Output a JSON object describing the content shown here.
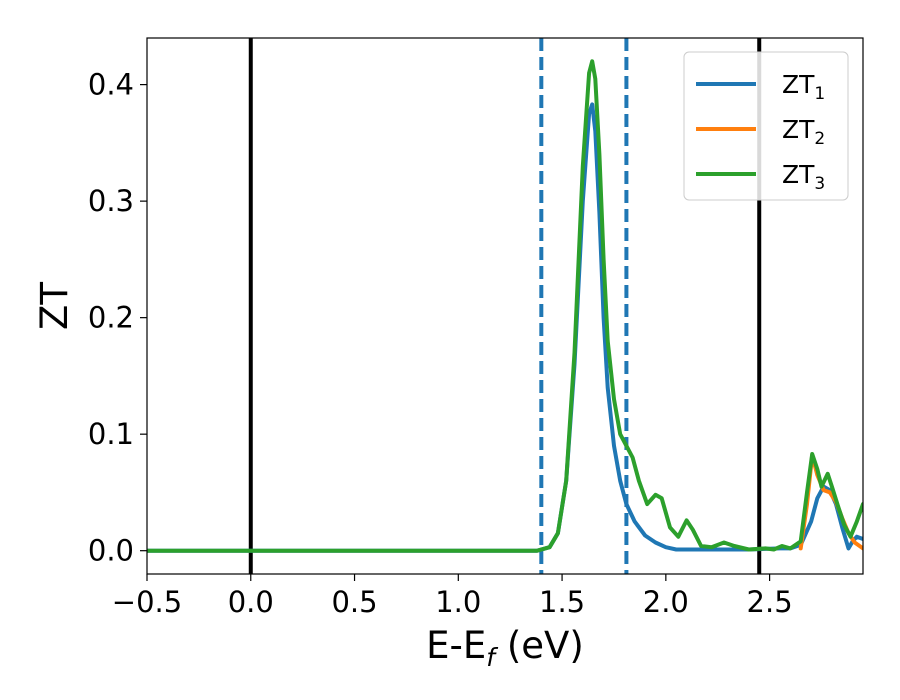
{
  "chart_data": {
    "type": "line",
    "xlabel": {
      "main": "E-E",
      "sub": "f",
      "rest": " (eV)"
    },
    "ylabel": "ZT",
    "xlim": [
      -0.5,
      2.95
    ],
    "ylim": [
      -0.02,
      0.44
    ],
    "xticks": [
      {
        "value": -0.5,
        "label": "−0.5"
      },
      {
        "value": 0.0,
        "label": "0.0"
      },
      {
        "value": 0.5,
        "label": "0.5"
      },
      {
        "value": 1.0,
        "label": "1.0"
      },
      {
        "value": 1.5,
        "label": "1.5"
      },
      {
        "value": 2.0,
        "label": "2.0"
      },
      {
        "value": 2.5,
        "label": "2.5"
      }
    ],
    "yticks": [
      {
        "value": 0.0,
        "label": "0.0"
      },
      {
        "value": 0.1,
        "label": "0.1"
      },
      {
        "value": 0.2,
        "label": "0.2"
      },
      {
        "value": 0.3,
        "label": "0.3"
      },
      {
        "value": 0.4,
        "label": "0.4"
      }
    ],
    "vlines": [
      {
        "x": 0.0,
        "style": "solid",
        "color": "#000000"
      },
      {
        "x": 2.45,
        "style": "solid",
        "color": "#000000"
      },
      {
        "x": 1.4,
        "style": "dashed",
        "color": "#1f77b4"
      },
      {
        "x": 1.81,
        "style": "dashed",
        "color": "#1f77b4"
      }
    ],
    "legend_position": "top-right",
    "series": [
      {
        "name": "ZT",
        "sub": "1",
        "color": "#1f77b4",
        "points": [
          [
            -0.5,
            0
          ],
          [
            1.38,
            0
          ],
          [
            1.44,
            0.003
          ],
          [
            1.48,
            0.015
          ],
          [
            1.52,
            0.06
          ],
          [
            1.56,
            0.16
          ],
          [
            1.6,
            0.3
          ],
          [
            1.63,
            0.375
          ],
          [
            1.645,
            0.383
          ],
          [
            1.66,
            0.36
          ],
          [
            1.68,
            0.29
          ],
          [
            1.7,
            0.2
          ],
          [
            1.72,
            0.14
          ],
          [
            1.75,
            0.09
          ],
          [
            1.78,
            0.06
          ],
          [
            1.81,
            0.04
          ],
          [
            1.85,
            0.025
          ],
          [
            1.9,
            0.013
          ],
          [
            1.95,
            0.007
          ],
          [
            2.0,
            0.003
          ],
          [
            2.05,
            0.001
          ],
          [
            2.2,
            0.001
          ],
          [
            2.4,
            0.001
          ],
          [
            2.55,
            0.002
          ],
          [
            2.6,
            0.002
          ],
          [
            2.65,
            0.005
          ],
          [
            2.7,
            0.025
          ],
          [
            2.73,
            0.045
          ],
          [
            2.76,
            0.055
          ],
          [
            2.79,
            0.052
          ],
          [
            2.82,
            0.04
          ],
          [
            2.85,
            0.02
          ],
          [
            2.88,
            0.002
          ],
          [
            2.9,
            0.008
          ],
          [
            2.92,
            0.012
          ],
          [
            2.95,
            0.01
          ]
        ]
      },
      {
        "name": "ZT",
        "sub": "2",
        "color": "#ff7f0e",
        "points": [
          [
            2.65,
            0.002
          ],
          [
            2.68,
            0.04
          ],
          [
            2.705,
            0.082
          ],
          [
            2.73,
            0.065
          ],
          [
            2.76,
            0.052
          ],
          [
            2.79,
            0.05
          ],
          [
            2.82,
            0.042
          ],
          [
            2.85,
            0.028
          ],
          [
            2.88,
            0.015
          ],
          [
            2.91,
            0.007
          ],
          [
            2.95,
            0.002
          ]
        ]
      },
      {
        "name": "ZT",
        "sub": "3",
        "color": "#2ca02c",
        "points": [
          [
            -0.5,
            0
          ],
          [
            1.38,
            0
          ],
          [
            1.44,
            0.003
          ],
          [
            1.48,
            0.015
          ],
          [
            1.52,
            0.06
          ],
          [
            1.56,
            0.17
          ],
          [
            1.6,
            0.33
          ],
          [
            1.63,
            0.41
          ],
          [
            1.645,
            0.42
          ],
          [
            1.66,
            0.405
          ],
          [
            1.68,
            0.34
          ],
          [
            1.7,
            0.25
          ],
          [
            1.72,
            0.18
          ],
          [
            1.75,
            0.13
          ],
          [
            1.78,
            0.1
          ],
          [
            1.81,
            0.09
          ],
          [
            1.84,
            0.08
          ],
          [
            1.87,
            0.06
          ],
          [
            1.91,
            0.04
          ],
          [
            1.95,
            0.048
          ],
          [
            1.98,
            0.045
          ],
          [
            2.02,
            0.02
          ],
          [
            2.06,
            0.012
          ],
          [
            2.1,
            0.026
          ],
          [
            2.13,
            0.018
          ],
          [
            2.17,
            0.004
          ],
          [
            2.22,
            0.003
          ],
          [
            2.28,
            0.007
          ],
          [
            2.33,
            0.004
          ],
          [
            2.4,
            0.001
          ],
          [
            2.48,
            0.002
          ],
          [
            2.52,
            0.001
          ],
          [
            2.56,
            0.004
          ],
          [
            2.6,
            0.002
          ],
          [
            2.65,
            0.008
          ],
          [
            2.68,
            0.05
          ],
          [
            2.705,
            0.083
          ],
          [
            2.73,
            0.07
          ],
          [
            2.75,
            0.055
          ],
          [
            2.78,
            0.066
          ],
          [
            2.8,
            0.055
          ],
          [
            2.83,
            0.038
          ],
          [
            2.86,
            0.022
          ],
          [
            2.89,
            0.012
          ],
          [
            2.92,
            0.025
          ],
          [
            2.95,
            0.04
          ]
        ]
      }
    ]
  }
}
